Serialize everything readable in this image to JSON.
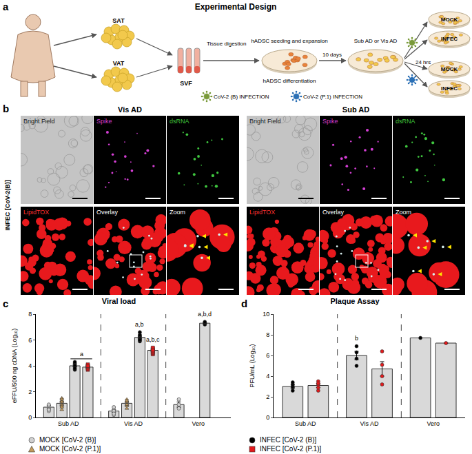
{
  "panel_a": {
    "label": "a",
    "title": "Experimental Design",
    "tissues": [
      "SAT",
      "VAT"
    ],
    "steps": [
      "Tissue digestion",
      "hADSC seeding and expansion",
      "10 days",
      "Sub AD or Vis AD",
      "24 hrs"
    ],
    "fraction": "SVF",
    "differentiation": "hADSC differentiation",
    "conditions": [
      "MOCK",
      "INFEC",
      "MOCK",
      "INFEC"
    ],
    "infections": [
      {
        "label": "CoV-2 (B) INFECTION",
        "color": "#7a9a3a"
      },
      {
        "label": "CoV-2 (P.1) INFECTION",
        "color": "#2a6fb5"
      }
    ]
  },
  "panel_b": {
    "label": "b",
    "row_label": "INFEC [CoV-2(B)]",
    "groups": [
      {
        "title": "Vis AD",
        "tiles": [
          {
            "label": "Bright Field",
            "color": "#222222"
          },
          {
            "label": "Spike",
            "color": "#d53fd5"
          },
          {
            "label": "dsRNA",
            "color": "#3fc63f"
          },
          {
            "label": "LipidTOX",
            "color": "#ff3030"
          },
          {
            "label": "Overlay",
            "color": "#ffffff"
          },
          {
            "label": "Zoom",
            "color": "#ffffff"
          }
        ]
      },
      {
        "title": "Sub AD",
        "tiles": [
          {
            "label": "Bright Field",
            "color": "#222222"
          },
          {
            "label": "Spike",
            "color": "#d53fd5"
          },
          {
            "label": "dsRNA",
            "color": "#3fc63f"
          },
          {
            "label": "LipidTOX",
            "color": "#ff3030"
          },
          {
            "label": "Overlay",
            "color": "#ffffff"
          },
          {
            "label": "Zoom",
            "color": "#ffffff"
          }
        ]
      }
    ]
  },
  "panel_labels": [
    "c",
    "d"
  ],
  "chart_data": [
    {
      "type": "bar",
      "title": "Viral load",
      "y_label": "eFFU/500 ng cDNA (Log₁₀)",
      "categories": [
        "Sub AD",
        "Vis AD",
        "Vero"
      ],
      "ylim": [
        0,
        8
      ],
      "yticks": [
        0,
        2,
        4,
        6,
        8
      ],
      "grid": false,
      "legend": "bottom",
      "series": [
        {
          "name": "MOCK [CoV-2 (B)]",
          "color": "#d0d0d0",
          "marker": "circle",
          "values": [
            0.8,
            0.5,
            1.0
          ],
          "errors": [
            0.15,
            0.1,
            0.2
          ],
          "points": [
            [
              0.5,
              0.7,
              0.9,
              1.0,
              0.6
            ],
            [
              0.2,
              0.4,
              0.6,
              0.8,
              0.5,
              0.3
            ],
            [
              0.7,
              1.0,
              1.4
            ]
          ]
        },
        {
          "name": "MOCK [CoV-2 (P.1)]",
          "color": "#c49a5a",
          "marker": "triangle-up",
          "values": [
            1.1,
            1.1,
            null
          ],
          "errors": [
            0.12,
            0.12,
            null
          ],
          "points": [
            [
              0.6,
              1.0,
              1.3,
              1.5,
              0.9,
              1.2,
              1.4,
              0.8
            ],
            [
              0.7,
              0.9,
              1.2,
              1.4,
              1.0,
              1.3
            ],
            null
          ]
        },
        {
          "name": "INFEC [CoV-2 (B)]",
          "color": "#000000",
          "marker": "circle",
          "values": [
            4.0,
            6.2,
            7.3
          ],
          "errors": [
            0.08,
            0.1,
            0.05
          ],
          "points": [
            [
              3.7,
              3.9,
              4.0,
              4.2,
              4.3,
              4.0,
              3.8
            ],
            [
              5.9,
              6.0,
              6.2,
              6.3,
              6.4,
              6.6,
              6.1,
              6.0
            ],
            [
              7.2,
              7.3,
              7.4
            ]
          ]
        },
        {
          "name": "INFEC [CoV-2 (P.1)]",
          "color": "#e31a1c",
          "marker": "square",
          "values": [
            3.9,
            5.2,
            null
          ],
          "errors": [
            0.06,
            0.08,
            null
          ],
          "points": [
            [
              3.7,
              3.8,
              3.9,
              4.1,
              4.0,
              3.9,
              4.0
            ],
            [
              4.9,
              5.0,
              5.2,
              5.3,
              5.4,
              5.1,
              5.2
            ],
            null
          ]
        }
      ],
      "annotations": [
        {
          "text": "a",
          "category": "Sub AD",
          "series": [
            "INFEC [CoV-2 (B)]",
            "INFEC [CoV-2 (P.1)]"
          ]
        },
        {
          "text": "a,b",
          "category": "Vis AD",
          "series": [
            "INFEC [CoV-2 (B)]"
          ]
        },
        {
          "text": "a,b,c",
          "category": "Vis AD",
          "series": [
            "INFEC [CoV-2 (P.1)]"
          ]
        },
        {
          "text": "a,b,d",
          "category": "Vero",
          "series": [
            "INFEC [CoV-2 (B)]"
          ]
        }
      ]
    },
    {
      "type": "bar",
      "title": "Plaque Assay",
      "y_label": "PFU/mL (Log₁₀)",
      "categories": [
        "Sub AD",
        "Vis AD",
        "Vero"
      ],
      "ylim": [
        0,
        10
      ],
      "yticks": [
        0,
        2,
        4,
        6,
        8,
        10
      ],
      "grid": false,
      "series": [
        {
          "name": "INFEC [CoV-2 (B)]",
          "color": "#000000",
          "marker": "circle",
          "values": [
            3.0,
            6.0,
            7.7
          ],
          "errors": [
            0.15,
            0.4,
            null
          ],
          "points": [
            [
              2.6,
              2.9,
              3.0,
              3.2,
              3.4
            ],
            [
              5.0,
              5.7,
              6.3,
              6.9
            ],
            [
              7.7
            ]
          ]
        },
        {
          "name": "INFEC [CoV-2 (P.1)]",
          "color": "#e31a1c",
          "marker": "circle",
          "values": [
            3.1,
            4.7,
            7.2
          ],
          "errors": [
            0.2,
            0.7,
            null
          ],
          "points": [
            [
              2.6,
              2.9,
              3.2,
              3.5,
              3.3
            ],
            [
              3.2,
              4.0,
              5.1,
              6.4
            ],
            [
              7.2
            ]
          ]
        }
      ],
      "annotations": [
        {
          "text": "b",
          "category": "Vis AD",
          "series": [
            "INFEC [CoV-2 (B)]"
          ]
        }
      ]
    }
  ]
}
